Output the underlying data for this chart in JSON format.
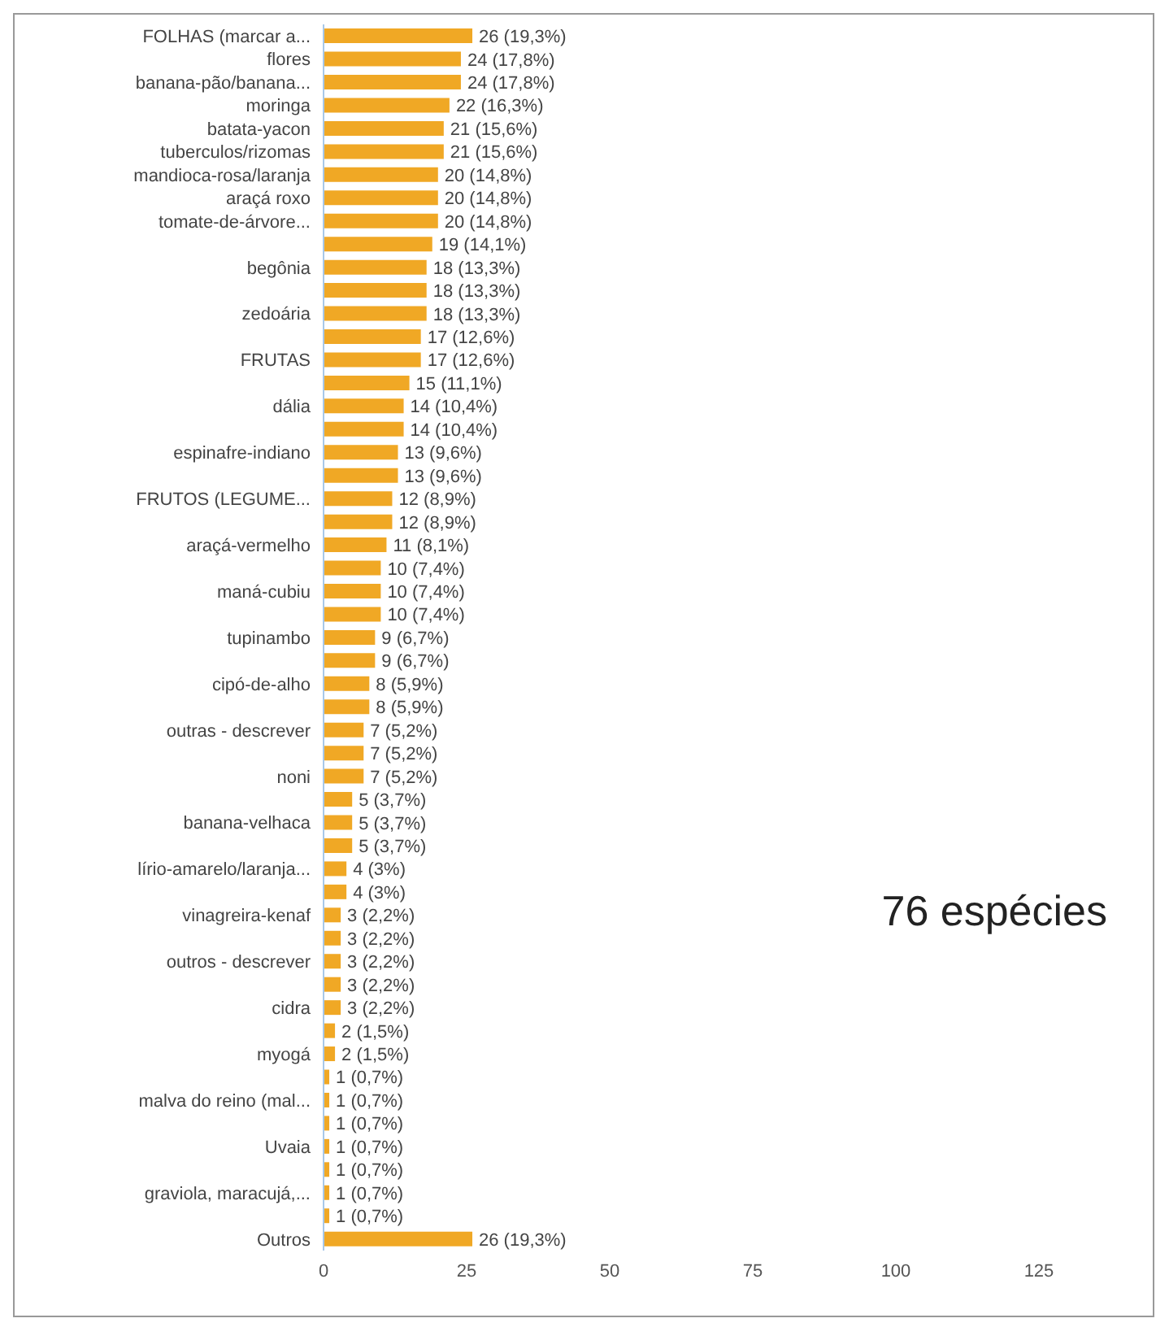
{
  "chart_data": {
    "type": "bar",
    "orientation": "horizontal",
    "categories": [
      "FOLHAS (marcar a...",
      "flores",
      "banana-pão/banana...",
      "moringa",
      "batata-yacon",
      "tuberculos/rizomas",
      "mandioca-rosa/laranja",
      "araçá roxo",
      "tomate-de-árvore...",
      null,
      "begônia",
      null,
      "zedoária",
      null,
      "FRUTAS",
      null,
      "dália",
      null,
      "espinafre-indiano",
      null,
      "FRUTOS (LEGUME...",
      null,
      "araçá-vermelho",
      null,
      "maná-cubiu",
      null,
      "tupinambo",
      null,
      "cipó-de-alho",
      null,
      "outras - descrever",
      null,
      "noni",
      null,
      "banana-velhaca",
      null,
      "lírio-amarelo/laranja...",
      null,
      "vinagreira-kenaf",
      null,
      "outros - descrever",
      null,
      "cidra",
      null,
      "myogá",
      null,
      "malva do reino (mal...",
      null,
      "Uvaia",
      null,
      "graviola, maracujá,...",
      null,
      "Outros"
    ],
    "values": [
      26,
      24,
      24,
      22,
      21,
      21,
      20,
      20,
      20,
      19,
      18,
      18,
      18,
      17,
      17,
      15,
      14,
      14,
      13,
      13,
      12,
      12,
      11,
      10,
      10,
      10,
      9,
      9,
      8,
      8,
      7,
      7,
      7,
      5,
      5,
      5,
      4,
      4,
      3,
      3,
      3,
      3,
      3,
      2,
      2,
      1,
      1,
      1,
      1,
      1,
      1,
      1,
      26
    ],
    "value_labels": [
      "26 (19,3%)",
      "24 (17,8%)",
      "24 (17,8%)",
      "22 (16,3%)",
      "21 (15,6%)",
      "21 (15,6%)",
      "20 (14,8%)",
      "20 (14,8%)",
      "20 (14,8%)",
      "19 (14,1%)",
      "18 (13,3%)",
      "18 (13,3%)",
      "18 (13,3%)",
      "17 (12,6%)",
      "17 (12,6%)",
      "15 (11,1%)",
      "14 (10,4%)",
      "14 (10,4%)",
      "13 (9,6%)",
      "13 (9,6%)",
      "12 (8,9%)",
      "12 (8,9%)",
      "11 (8,1%)",
      "10 (7,4%)",
      "10 (7,4%)",
      "10 (7,4%)",
      "9 (6,7%)",
      "9 (6,7%)",
      "8 (5,9%)",
      "8 (5,9%)",
      "7 (5,2%)",
      "7 (5,2%)",
      "7 (5,2%)",
      "5 (3,7%)",
      "5 (3,7%)",
      "5 (3,7%)",
      "4 (3%)",
      "4 (3%)",
      "3 (2,2%)",
      "3 (2,2%)",
      "3 (2,2%)",
      "3 (2,2%)",
      "3 (2,2%)",
      "2 (1,5%)",
      "2 (1,5%)",
      "1 (0,7%)",
      "1 (0,7%)",
      "1 (0,7%)",
      "1 (0,7%)",
      "1 (0,7%)",
      "1 (0,7%)",
      "1 (0,7%)",
      "26 (19,3%)"
    ],
    "color": "#f0a825",
    "xlim": [
      0,
      125
    ],
    "xticks": [
      0,
      25,
      50,
      75,
      100,
      125
    ],
    "annotations": [
      "76 espécies"
    ]
  }
}
